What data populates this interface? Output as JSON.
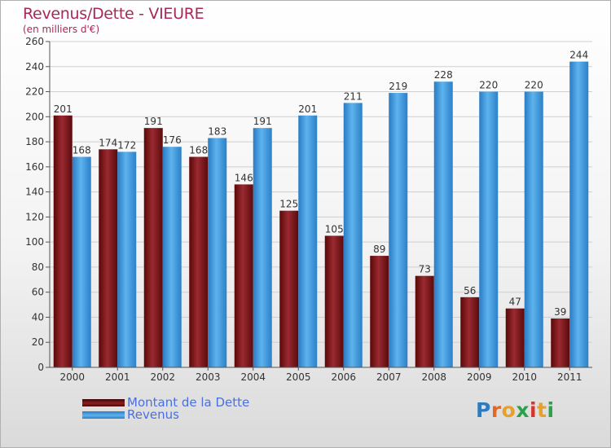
{
  "header": {
    "title": "Revenus/Dette - VIEURE",
    "subtitle": "(en milliers d'€)"
  },
  "legend": {
    "items": [
      {
        "label": "Montant de la Dette",
        "color": "#7a1518"
      },
      {
        "label": "Revenus",
        "color": "#4aa3e4"
      }
    ]
  },
  "logo": {
    "text": "Proxiti",
    "letter_colors": [
      "#2f7bbf",
      "#e06a28",
      "#e9a02a",
      "#2fa04a",
      "#d6342b",
      "#e9a02a",
      "#2fa04a"
    ]
  },
  "chart_data": {
    "type": "bar",
    "categories": [
      "2000",
      "2001",
      "2002",
      "2003",
      "2004",
      "2005",
      "2006",
      "2007",
      "2008",
      "2009",
      "2010",
      "2011"
    ],
    "series": [
      {
        "name": "Montant de la Dette",
        "values": [
          201,
          174,
          191,
          168,
          146,
          125,
          105,
          89,
          73,
          56,
          47,
          39
        ],
        "color": "#7a1518"
      },
      {
        "name": "Revenus",
        "values": [
          168,
          172,
          176,
          183,
          191,
          201,
          211,
          219,
          228,
          220,
          220,
          244
        ],
        "color": "#4aa3e4"
      }
    ],
    "title": "Revenus/Dette - VIEURE",
    "ylabel": "(en milliers d'€)",
    "ylim": [
      0,
      260
    ],
    "yticks": [
      0,
      20,
      40,
      60,
      80,
      100,
      120,
      140,
      160,
      180,
      200,
      220,
      240,
      260
    ],
    "grid": true,
    "legend_position": "bottom-left",
    "data_labels": true
  }
}
